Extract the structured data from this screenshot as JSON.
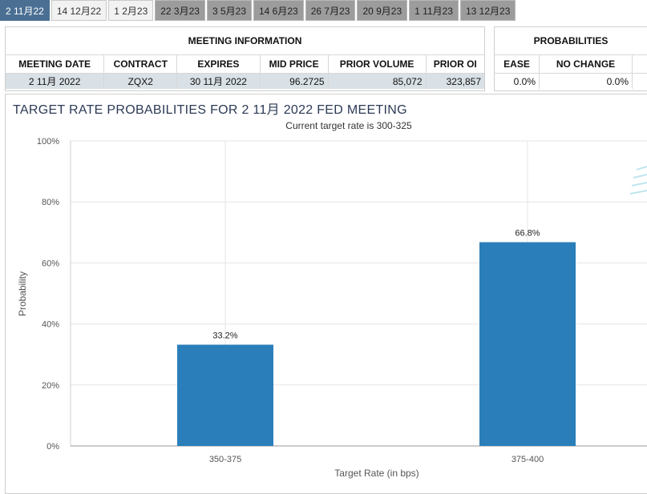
{
  "tabs": [
    {
      "label": "2 11月22",
      "state": "active"
    },
    {
      "label": "14 12月22",
      "state": "light"
    },
    {
      "label": "1 2月23",
      "state": "light"
    },
    {
      "label": "22 3月23",
      "state": "dark"
    },
    {
      "label": "3 5月23",
      "state": "dark"
    },
    {
      "label": "14 6月23",
      "state": "dark"
    },
    {
      "label": "26 7月23",
      "state": "dark"
    },
    {
      "label": "20 9月23",
      "state": "dark"
    },
    {
      "label": "1 11月23",
      "state": "dark"
    },
    {
      "label": "13 12月23",
      "state": "dark"
    }
  ],
  "meeting_info": {
    "title": "MEETING INFORMATION",
    "headers": {
      "meeting_date": "MEETING DATE",
      "contract": "CONTRACT",
      "expires": "EXPIRES",
      "mid_price": "MID PRICE",
      "prior_volume": "PRIOR VOLUME",
      "prior_oi": "PRIOR OI"
    },
    "row": {
      "meeting_date": "2 11月 2022",
      "contract": "ZQX2",
      "expires": "30 11月 2022",
      "mid_price": "96.2725",
      "prior_volume": "85,072",
      "prior_oi": "323,857"
    }
  },
  "probabilities": {
    "title": "PROBABILITIES",
    "headers": {
      "ease": "EASE",
      "no_change": "NO CHANGE"
    },
    "row": {
      "ease": "0.0%",
      "no_change": "0.0%"
    }
  },
  "chart_data": {
    "type": "bar",
    "title": "TARGET RATE PROBABILITIES FOR 2 11月 2022 FED MEETING",
    "subtitle": "Current target rate is 300-325",
    "xlabel": "Target Rate (in bps)",
    "ylabel": "Probability",
    "categories": [
      "350-375",
      "375-400"
    ],
    "values": [
      33.2,
      66.8
    ],
    "data_labels": [
      "33.2%",
      "66.8%"
    ],
    "ylim": [
      0,
      100
    ],
    "yticks": [
      0,
      20,
      40,
      60,
      80,
      100
    ],
    "ytick_labels": [
      "0%",
      "20%",
      "40%",
      "60%",
      "80%",
      "100%"
    ],
    "grid": true,
    "bar_color": "#2a7fba"
  }
}
